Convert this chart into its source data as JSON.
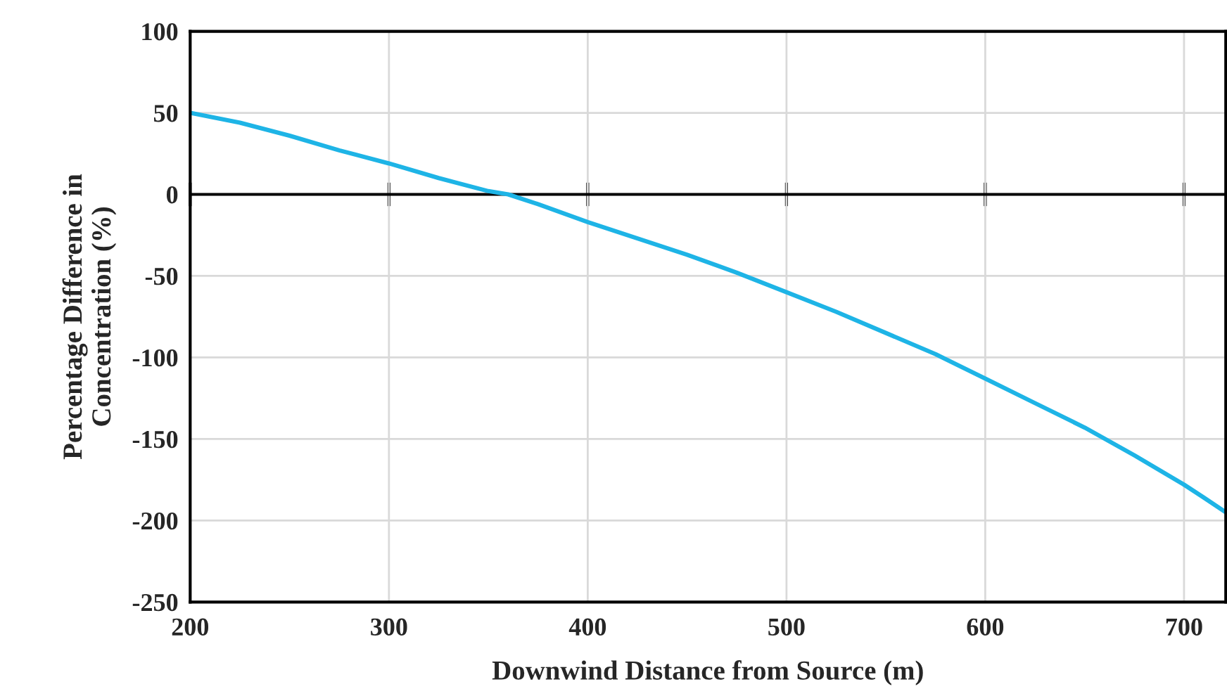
{
  "chart_data": {
    "type": "line",
    "xlabel": "Downwind Distance from Source (m)",
    "ylabel": "Percentage Difference in\nConcentration (%)",
    "xlim": [
      200,
      721
    ],
    "xticks": [
      200,
      300,
      400,
      500,
      600,
      700
    ],
    "ylim": [
      -250,
      100
    ],
    "yticks": [
      -250,
      -200,
      -150,
      -100,
      -50,
      0,
      50,
      100
    ],
    "grid": true,
    "ref_lines": [
      {
        "axis": "y",
        "value": 0,
        "color": "#000000"
      }
    ],
    "series": [
      {
        "color": "#1eb4e6",
        "x": [
          200,
          225,
          250,
          275,
          300,
          325,
          350,
          360,
          375,
          400,
          425,
          450,
          475,
          500,
          525,
          550,
          575,
          600,
          625,
          650,
          675,
          700,
          710,
          721
        ],
        "values": [
          50,
          44,
          36,
          27,
          19,
          10,
          2,
          0,
          -6,
          -17,
          -27,
          -37,
          -48,
          -60,
          -72,
          -85,
          -98,
          -113,
          -128,
          -143,
          -160,
          -178,
          -186,
          -195
        ]
      }
    ]
  }
}
